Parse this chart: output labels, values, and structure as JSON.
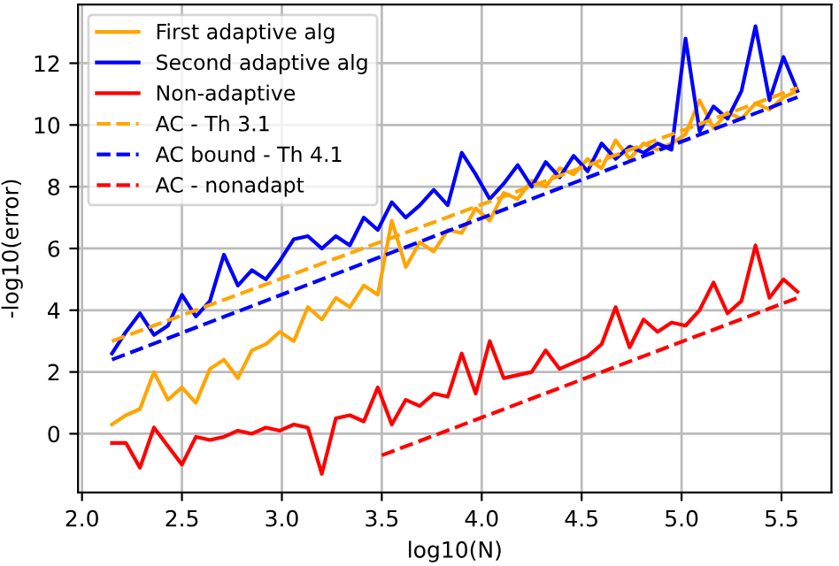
{
  "chart_data": {
    "type": "line",
    "xlabel": "log10(N)",
    "ylabel": "-log10(error)",
    "x": [
      2.15,
      2.22,
      2.29,
      2.36,
      2.43,
      2.5,
      2.57,
      2.64,
      2.71,
      2.78,
      2.85,
      2.92,
      2.99,
      3.06,
      3.13,
      3.2,
      3.27,
      3.34,
      3.41,
      3.48,
      3.55,
      3.62,
      3.69,
      3.76,
      3.83,
      3.9,
      3.97,
      4.04,
      4.11,
      4.18,
      4.25,
      4.32,
      4.39,
      4.46,
      4.53,
      4.6,
      4.67,
      4.74,
      4.81,
      4.88,
      4.95,
      5.02,
      5.09,
      5.16,
      5.23,
      5.3,
      5.37,
      5.44,
      5.51,
      5.58
    ],
    "series": [
      {
        "name": "First adaptive alg",
        "color": "#ffa500",
        "line_style": "solid",
        "values": [
          0.3,
          0.6,
          0.8,
          2.0,
          1.1,
          1.5,
          1.0,
          2.1,
          2.4,
          1.8,
          2.7,
          2.9,
          3.3,
          3.0,
          4.1,
          3.7,
          4.4,
          4.1,
          4.8,
          4.5,
          6.9,
          5.4,
          6.2,
          5.9,
          6.6,
          6.5,
          7.3,
          6.9,
          7.8,
          7.6,
          8.2,
          8.0,
          8.6,
          8.4,
          8.9,
          8.6,
          9.5,
          8.9,
          9.4,
          9.2,
          9.4,
          9.7,
          10.8,
          9.9,
          10.4,
          10.2,
          10.7,
          10.5,
          10.9,
          11.1
        ]
      },
      {
        "name": "Second adaptive alg",
        "color": "#0000ff",
        "line_style": "solid",
        "values": [
          2.6,
          3.3,
          3.9,
          3.2,
          3.5,
          4.5,
          3.8,
          4.3,
          5.8,
          4.8,
          5.3,
          5.0,
          5.6,
          6.3,
          6.4,
          6.0,
          6.4,
          6.1,
          7.0,
          6.6,
          7.5,
          7.0,
          7.4,
          7.9,
          7.4,
          9.1,
          8.4,
          7.6,
          8.1,
          8.7,
          8.0,
          8.8,
          8.3,
          9.0,
          8.5,
          9.4,
          8.9,
          9.3,
          9.1,
          9.4,
          9.2,
          12.8,
          9.8,
          10.6,
          10.2,
          11.1,
          13.2,
          10.8,
          12.2,
          11.1
        ]
      },
      {
        "name": "Non-adaptive",
        "color": "#ff0000",
        "line_style": "solid",
        "values": [
          -0.3,
          -0.3,
          -1.1,
          0.2,
          -0.4,
          -1.0,
          -0.1,
          -0.2,
          -0.1,
          0.1,
          0.0,
          0.2,
          0.1,
          0.3,
          0.2,
          -1.3,
          0.5,
          0.6,
          0.4,
          1.5,
          0.3,
          1.1,
          0.9,
          1.3,
          1.2,
          2.6,
          1.3,
          3.0,
          1.8,
          1.9,
          2.0,
          2.7,
          2.1,
          2.3,
          2.5,
          2.9,
          4.1,
          2.8,
          3.7,
          3.3,
          3.6,
          3.5,
          4.0,
          4.9,
          3.9,
          4.3,
          6.1,
          4.4,
          5.0,
          4.6
        ]
      },
      {
        "name": "AC - Th 3.1",
        "color": "#ffa500",
        "line_style": "dashed",
        "x": [
          2.15,
          5.58
        ],
        "values": [
          3.0,
          11.2
        ]
      },
      {
        "name": "AC bound - Th 4.1",
        "color": "#0000ff",
        "line_style": "dashed",
        "x": [
          2.15,
          5.58
        ],
        "values": [
          2.4,
          10.9
        ]
      },
      {
        "name": "AC - nonadapt",
        "color": "#ff0000",
        "line_style": "dashed",
        "x": [
          3.5,
          5.58
        ],
        "values": [
          -0.7,
          4.4
        ]
      }
    ],
    "xlim": [
      1.98,
      5.75
    ],
    "ylim": [
      -1.9,
      13.9
    ],
    "xticks": [
      {
        "value": 2.0,
        "label": "2.0"
      },
      {
        "value": 2.5,
        "label": "2.5"
      },
      {
        "value": 3.0,
        "label": "3.0"
      },
      {
        "value": 3.5,
        "label": "3.5"
      },
      {
        "value": 4.0,
        "label": "4.0"
      },
      {
        "value": 4.5,
        "label": "4.5"
      },
      {
        "value": 5.0,
        "label": "5.0"
      },
      {
        "value": 5.5,
        "label": "5.5"
      }
    ],
    "yticks": [
      0,
      2,
      4,
      6,
      8,
      10,
      12
    ],
    "grid": true,
    "legend": "top left"
  }
}
